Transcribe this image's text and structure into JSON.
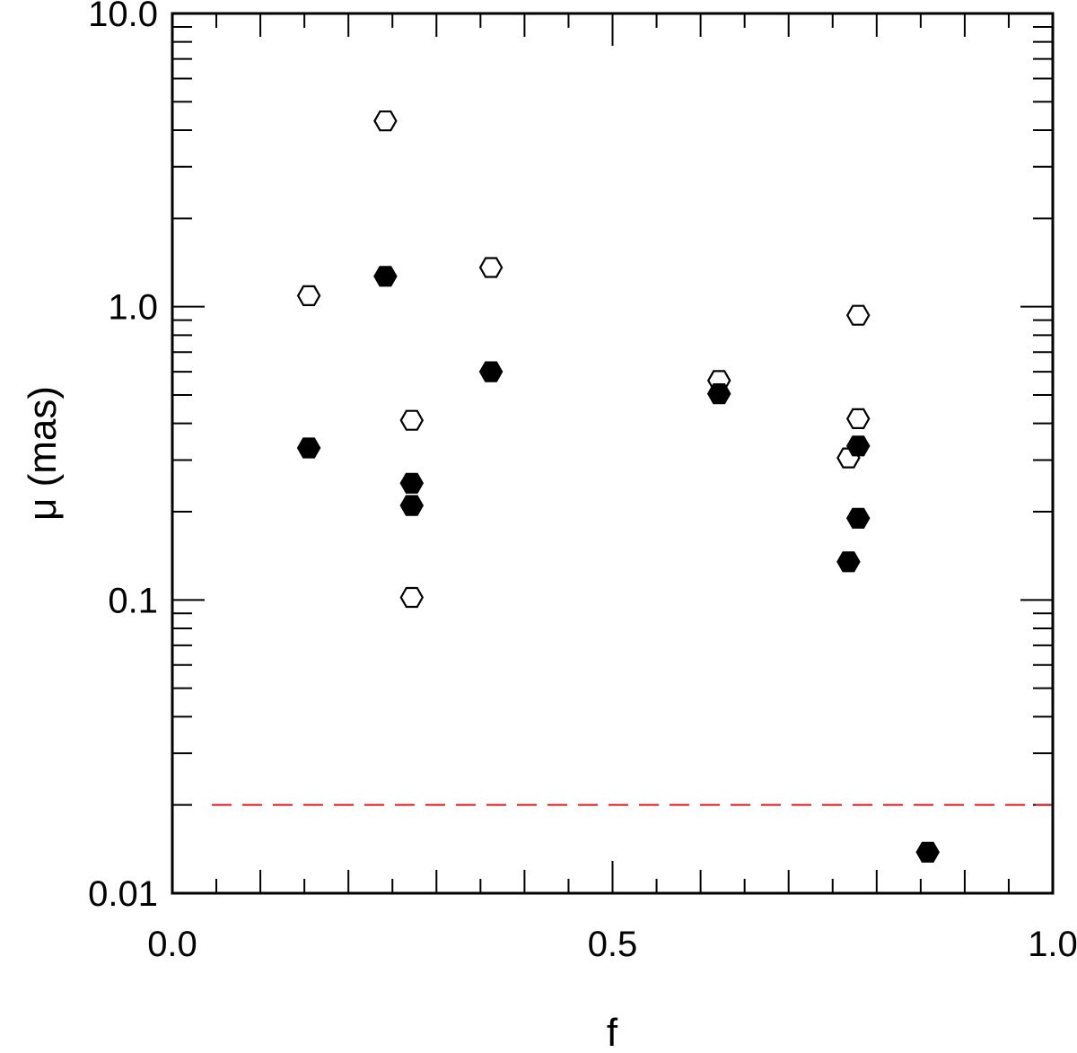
{
  "chart_data": {
    "type": "scatter",
    "title": "",
    "xlabel": "f",
    "ylabel": "μ (mas)",
    "xlim": [
      0.0,
      1.0
    ],
    "ylim": [
      0.01,
      10.0
    ],
    "yscale": "log",
    "grid": false,
    "x_ticks": [
      {
        "value": 0.0,
        "label": "0.0"
      },
      {
        "value": 0.5,
        "label": "0.5"
      },
      {
        "value": 1.0,
        "label": "1.0"
      }
    ],
    "y_ticks": [
      {
        "value": 0.01,
        "label": "0.01"
      },
      {
        "value": 0.1,
        "label": "0.1"
      },
      {
        "value": 1.0,
        "label": "1.0"
      },
      {
        "value": 10.0,
        "label": "10.0"
      }
    ],
    "series": [
      {
        "marker": "hexagon-open",
        "color": "#000000",
        "points": [
          {
            "x": 0.155,
            "y": 1.09
          },
          {
            "x": 0.242,
            "y": 4.3
          },
          {
            "x": 0.272,
            "y": 0.41
          },
          {
            "x": 0.272,
            "y": 0.102
          },
          {
            "x": 0.362,
            "y": 1.36
          },
          {
            "x": 0.621,
            "y": 0.56
          },
          {
            "x": 0.768,
            "y": 0.305
          },
          {
            "x": 0.779,
            "y": 0.415
          },
          {
            "x": 0.779,
            "y": 0.935
          }
        ]
      },
      {
        "marker": "hexagon-filled",
        "color": "#000000",
        "points": [
          {
            "x": 0.155,
            "y": 0.33
          },
          {
            "x": 0.242,
            "y": 1.27
          },
          {
            "x": 0.272,
            "y": 0.25
          },
          {
            "x": 0.272,
            "y": 0.21
          },
          {
            "x": 0.362,
            "y": 0.6
          },
          {
            "x": 0.621,
            "y": 0.505
          },
          {
            "x": 0.768,
            "y": 0.135
          },
          {
            "x": 0.779,
            "y": 0.335
          },
          {
            "x": 0.779,
            "y": 0.19
          },
          {
            "x": 0.858,
            "y": 0.0138
          }
        ]
      }
    ],
    "reference_lines": [
      {
        "orientation": "horizontal",
        "y": 0.02,
        "style": "dashed",
        "color": "#e31a1c"
      }
    ]
  }
}
